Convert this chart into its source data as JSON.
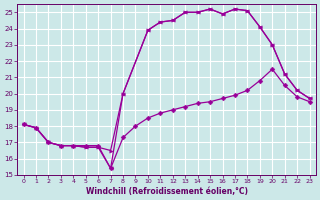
{
  "xlabel": "Windchill (Refroidissement éolien,°C)",
  "bg_color": "#cce8e8",
  "grid_color": "#ffffff",
  "line_color": "#990099",
  "xlim_min": -0.5,
  "xlim_max": 23.5,
  "ylim_min": 15,
  "ylim_max": 25.5,
  "yticks": [
    15,
    16,
    17,
    18,
    19,
    20,
    21,
    22,
    23,
    24,
    25
  ],
  "xticks": [
    0,
    1,
    2,
    3,
    4,
    5,
    6,
    7,
    8,
    9,
    10,
    11,
    12,
    13,
    14,
    15,
    16,
    17,
    18,
    19,
    20,
    21,
    22,
    23
  ],
  "curve1_x": [
    0,
    1,
    2,
    3,
    4,
    5,
    6,
    7,
    8,
    9,
    10,
    11,
    12,
    13,
    14,
    15,
    16,
    17,
    18,
    19,
    20,
    21,
    22,
    23
  ],
  "curve1_y": [
    18.1,
    17.9,
    17.0,
    16.8,
    16.8,
    16.8,
    16.8,
    15.4,
    17.3,
    18.0,
    18.5,
    18.8,
    19.0,
    19.2,
    19.4,
    19.5,
    19.7,
    19.9,
    20.2,
    20.8,
    21.5,
    20.5,
    19.8,
    19.5
  ],
  "curve2_x": [
    0,
    1,
    2,
    3,
    4,
    5,
    6,
    7,
    8,
    10,
    11,
    12,
    13,
    14,
    15,
    16,
    17,
    18,
    19,
    20,
    21,
    22,
    23
  ],
  "curve2_y": [
    18.1,
    17.9,
    17.0,
    16.8,
    16.8,
    16.7,
    16.7,
    16.5,
    20.0,
    23.9,
    24.4,
    24.5,
    25.0,
    25.0,
    25.2,
    24.9,
    25.2,
    25.1,
    24.1,
    23.0,
    21.2,
    20.2,
    19.7
  ],
  "curve3_x": [
    0,
    1,
    2,
    3,
    4,
    5,
    6,
    7,
    8,
    10,
    11,
    12,
    13,
    14,
    15,
    16,
    17,
    18,
    19,
    20,
    21,
    22,
    23
  ],
  "curve3_y": [
    18.1,
    17.9,
    17.0,
    16.8,
    16.8,
    16.7,
    16.7,
    15.4,
    20.0,
    23.9,
    24.4,
    24.5,
    25.0,
    25.0,
    25.2,
    24.9,
    25.2,
    25.1,
    24.1,
    23.0,
    21.2,
    20.2,
    19.7
  ]
}
